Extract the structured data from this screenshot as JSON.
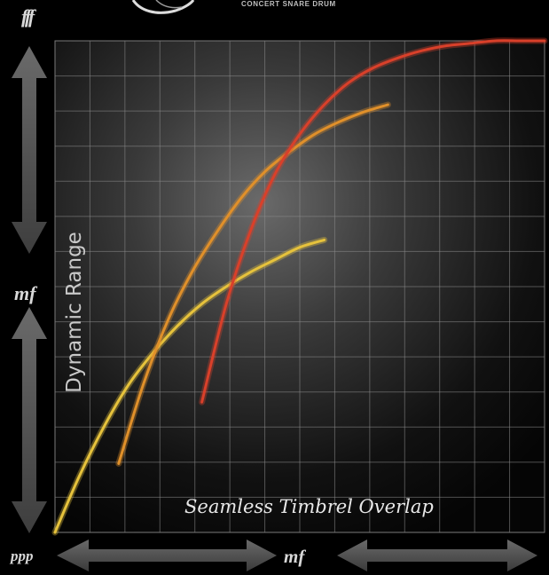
{
  "brand": {
    "subtitle": "CONCERT SNARE DRUM"
  },
  "dynamics": {
    "top": "fff",
    "middle": "mf",
    "bottom": "ppp",
    "x_middle": "mf"
  },
  "chart_data": {
    "type": "line",
    "title": "",
    "xlabel": "Seamless Timbrel Overlap",
    "ylabel": "Dynamic Range",
    "xlim": [
      0,
      10
    ],
    "ylim": [
      0,
      10
    ],
    "grid": true,
    "legend": "none",
    "series": [
      {
        "color": "#e6c23c",
        "x": [
          0,
          0.5,
          1.0,
          1.5,
          2.0,
          2.5,
          3.0,
          3.5,
          4.0,
          4.5,
          5.0,
          5.5
        ],
        "y": [
          0,
          1.15,
          2.15,
          3.0,
          3.65,
          4.2,
          4.65,
          5.0,
          5.3,
          5.55,
          5.8,
          5.95
        ]
      },
      {
        "color": "#e0902a",
        "x": [
          1.3,
          1.8,
          2.3,
          2.8,
          3.3,
          3.8,
          4.3,
          4.8,
          5.3,
          5.8,
          6.3,
          6.8
        ],
        "y": [
          1.4,
          3.0,
          4.3,
          5.3,
          6.1,
          6.8,
          7.35,
          7.75,
          8.1,
          8.35,
          8.55,
          8.7
        ]
      },
      {
        "color": "#d9402a",
        "x": [
          3.0,
          3.5,
          4.0,
          4.5,
          5.0,
          5.5,
          6.0,
          6.5,
          7.0,
          7.5,
          8.0,
          8.5,
          9.0,
          9.5,
          10.0
        ],
        "y": [
          2.65,
          4.65,
          6.15,
          7.3,
          8.1,
          8.7,
          9.15,
          9.45,
          9.65,
          9.8,
          9.9,
          9.95,
          10.0,
          10.0,
          10.0
        ]
      }
    ]
  }
}
